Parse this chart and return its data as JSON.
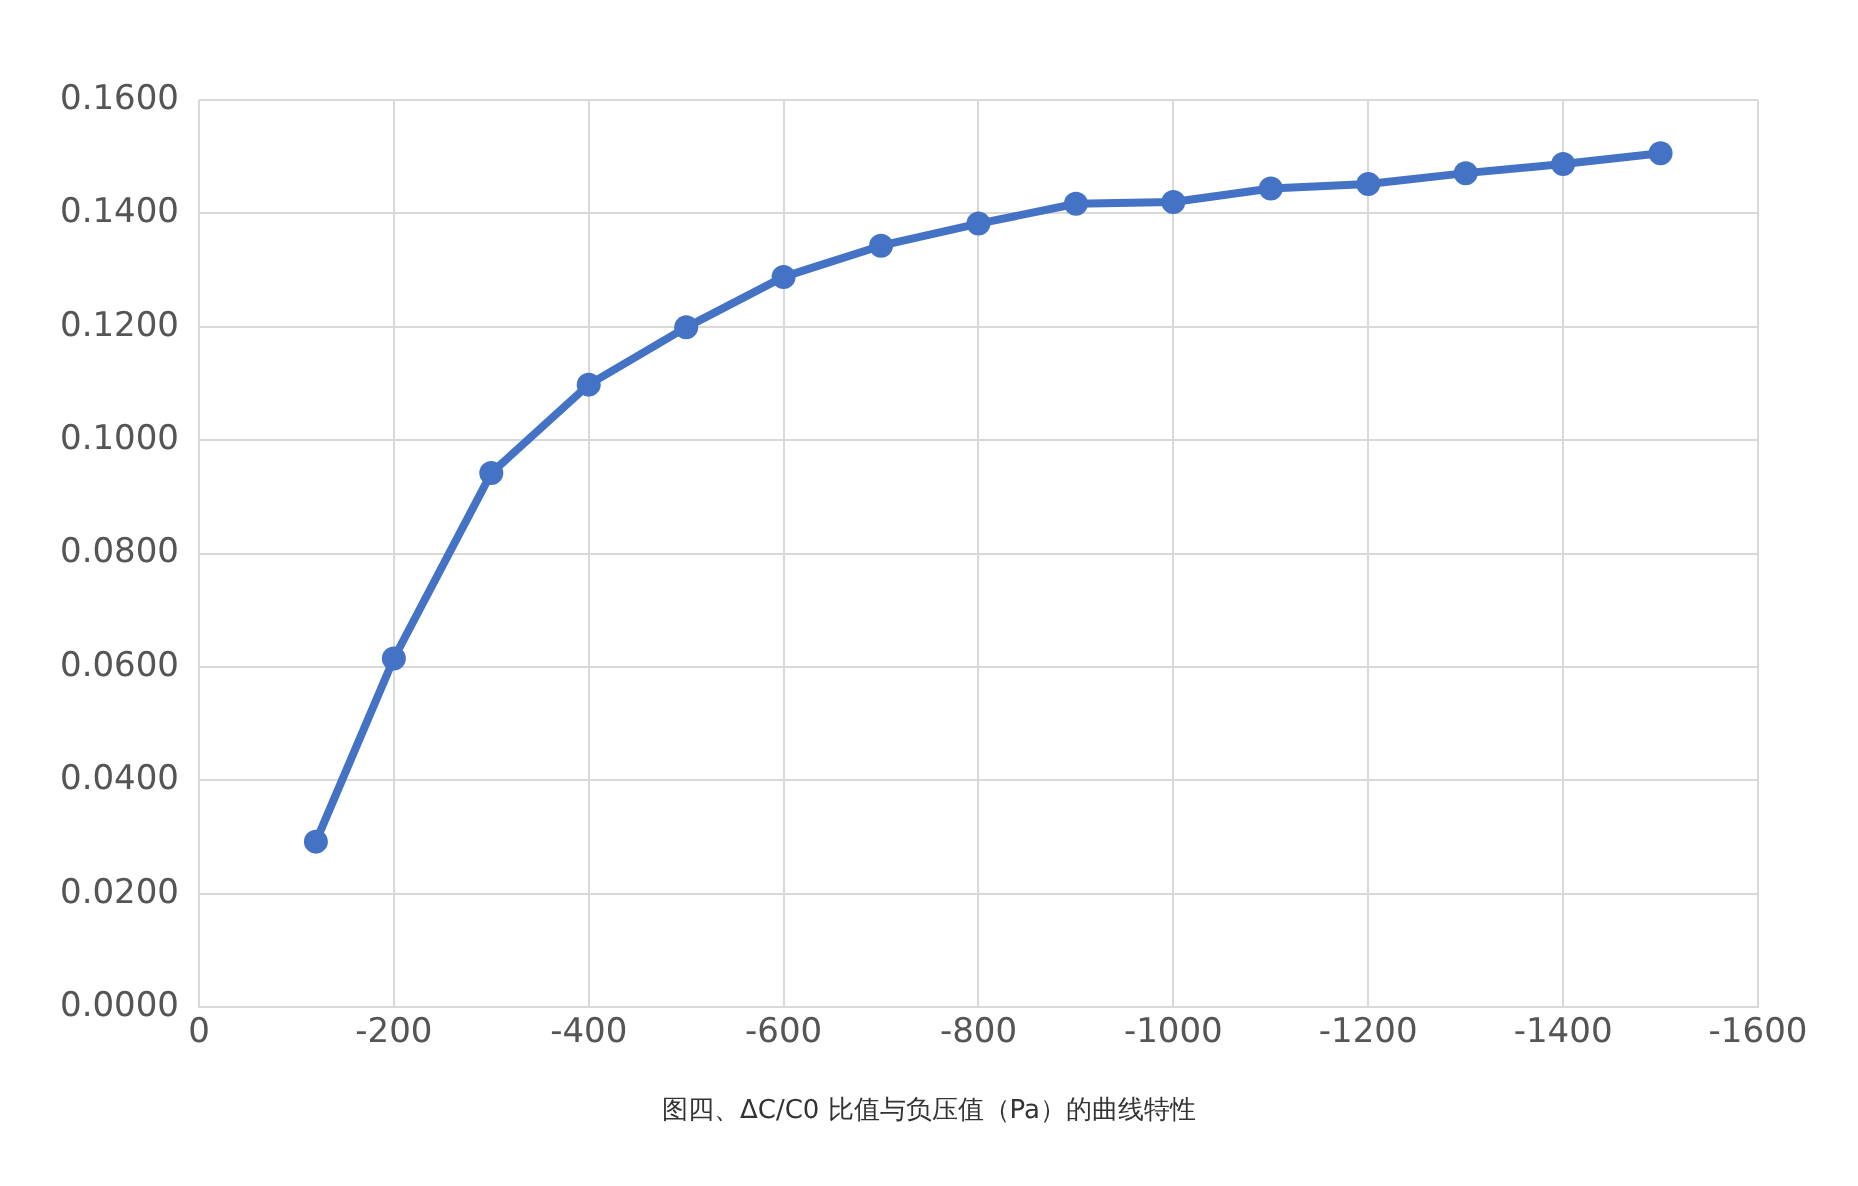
{
  "chart_data": {
    "type": "line",
    "x": [
      -120,
      -200,
      -300,
      -400,
      -500,
      -600,
      -700,
      -800,
      -900,
      -1000,
      -1100,
      -1200,
      -1300,
      -1400,
      -1500
    ],
    "series": [
      {
        "color": "#4472c4",
        "values": [
          0.0292,
          0.0615,
          0.0942,
          0.1098,
          0.1199,
          0.1288,
          0.1343,
          0.1382,
          0.1417,
          0.142,
          0.1444,
          0.1452,
          0.1471,
          0.1487,
          0.1506
        ]
      }
    ],
    "xlim": [
      0,
      -1600
    ],
    "xticks": [
      0,
      -200,
      -400,
      -600,
      -800,
      -1000,
      -1200,
      -1400,
      -1600
    ],
    "ylim": [
      0,
      0.16
    ],
    "yticks": [
      {
        "value": 0,
        "label": "0.0000"
      },
      {
        "value": 0.02,
        "label": "0.0200"
      },
      {
        "value": 0.04,
        "label": "0.0400"
      },
      {
        "value": 0.06,
        "label": "0.0600"
      },
      {
        "value": 0.08,
        "label": "0.0800"
      },
      {
        "value": 0.1,
        "label": "0.1000"
      },
      {
        "value": 0.12,
        "label": "0.1200"
      },
      {
        "value": 0.14,
        "label": "0.1400"
      },
      {
        "value": 0.16,
        "label": "0.1600"
      }
    ],
    "grid": true,
    "legend": false,
    "marker": "circle",
    "line_style": "solid",
    "annotations": [
      "图四、ΔC/C0 比值与负压值（Pa）的曲线特性"
    ]
  }
}
